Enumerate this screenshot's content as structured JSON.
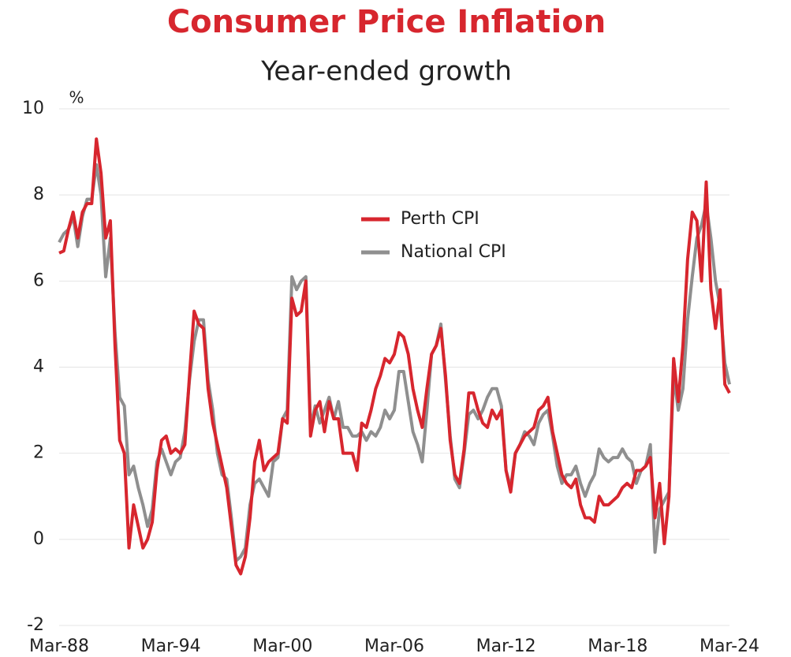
{
  "chart_data": {
    "type": "line",
    "title": "Consumer Price Inflation",
    "subtitle": "Year-ended growth",
    "y_label": "%",
    "categories": [
      "Mar-88",
      null,
      null,
      null,
      null,
      null,
      null,
      null,
      null,
      null,
      null,
      null,
      null,
      null,
      null,
      null,
      null,
      null,
      null,
      null,
      null,
      null,
      null,
      null,
      "Mar-94",
      null,
      null,
      null,
      null,
      null,
      null,
      null,
      null,
      null,
      null,
      null,
      null,
      null,
      null,
      null,
      null,
      null,
      null,
      null,
      null,
      null,
      null,
      null,
      "Mar-00",
      null,
      null,
      null,
      null,
      null,
      null,
      null,
      null,
      null,
      null,
      null,
      null,
      null,
      null,
      null,
      null,
      null,
      null,
      null,
      null,
      null,
      null,
      null,
      "Mar-06",
      null,
      null,
      null,
      null,
      null,
      null,
      null,
      null,
      null,
      null,
      null,
      null,
      null,
      null,
      null,
      null,
      null,
      null,
      null,
      null,
      null,
      null,
      null,
      "Mar-12",
      null,
      null,
      null,
      null,
      null,
      null,
      null,
      null,
      null,
      null,
      null,
      null,
      null,
      null,
      null,
      null,
      null,
      null,
      null,
      null,
      null,
      null,
      null,
      "Mar-18",
      null,
      null,
      null,
      null,
      null,
      null,
      null,
      null,
      null,
      null,
      null,
      null,
      null,
      null,
      null,
      null,
      null,
      null,
      null,
      null,
      null,
      null,
      null,
      "Mar-24"
    ],
    "series": [
      {
        "name": "Perth CPI",
        "color": "#d7262e",
        "values": [
          6.65,
          6.7,
          7.2,
          7.6,
          7.0,
          7.6,
          7.8,
          7.8,
          9.3,
          8.5,
          7.0,
          7.4,
          4.5,
          2.3,
          2.0,
          -0.2,
          0.8,
          0.3,
          -0.2,
          0.0,
          0.4,
          1.6,
          2.3,
          2.4,
          2.0,
          2.1,
          2.0,
          2.2,
          3.8,
          5.3,
          5.0,
          4.9,
          3.5,
          2.7,
          2.2,
          1.7,
          1.2,
          0.3,
          -0.6,
          -0.8,
          -0.4,
          0.5,
          1.8,
          2.3,
          1.6,
          1.8,
          1.9,
          2.0,
          2.8,
          2.7,
          5.6,
          5.2,
          5.3,
          6.0,
          2.4,
          3.0,
          3.2,
          2.5,
          3.2,
          2.8,
          2.8,
          2.0,
          2.0,
          2.0,
          1.6,
          2.7,
          2.6,
          3.0,
          3.5,
          3.8,
          4.2,
          4.1,
          4.3,
          4.8,
          4.7,
          4.3,
          3.5,
          3.0,
          2.6,
          3.5,
          4.3,
          4.5,
          4.9,
          3.8,
          2.3,
          1.5,
          1.3,
          2.1,
          3.4,
          3.4,
          3.0,
          2.7,
          2.6,
          3.0,
          2.8,
          3.0,
          1.6,
          1.1,
          2.0,
          2.2,
          2.4,
          2.5,
          2.6,
          3.0,
          3.1,
          3.3,
          2.5,
          2.0,
          1.5,
          1.3,
          1.2,
          1.4,
          0.8,
          0.5,
          0.5,
          0.4,
          1.0,
          0.8,
          0.8,
          0.9,
          1.0,
          1.2,
          1.3,
          1.2,
          1.6,
          1.6,
          1.7,
          1.9,
          0.5,
          1.3,
          -0.1,
          1.0,
          4.2,
          3.2,
          4.5,
          6.5,
          7.6,
          7.4,
          6.0,
          8.3,
          5.8,
          4.9,
          5.8,
          3.6,
          3.4
        ]
      },
      {
        "name": "National CPI",
        "color": "#8f8f8f",
        "values": [
          6.9,
          7.1,
          7.2,
          7.5,
          6.8,
          7.5,
          7.9,
          7.9,
          8.7,
          8.0,
          6.1,
          7.0,
          4.8,
          3.3,
          3.1,
          1.5,
          1.7,
          1.2,
          0.8,
          0.3,
          0.7,
          1.8,
          2.1,
          1.8,
          1.5,
          1.8,
          1.9,
          2.5,
          3.7,
          4.6,
          5.1,
          5.1,
          3.7,
          3.0,
          2.0,
          1.5,
          1.4,
          0.5,
          -0.5,
          -0.4,
          -0.2,
          0.8,
          1.3,
          1.4,
          1.2,
          1.0,
          1.8,
          1.9,
          2.8,
          3.0,
          6.1,
          5.8,
          6.0,
          6.1,
          2.6,
          3.1,
          2.7,
          3.0,
          3.3,
          2.8,
          3.2,
          2.6,
          2.6,
          2.4,
          2.4,
          2.5,
          2.3,
          2.5,
          2.4,
          2.6,
          3.0,
          2.8,
          3.0,
          3.9,
          3.9,
          3.2,
          2.5,
          2.2,
          1.8,
          3.0,
          4.3,
          4.5,
          5.0,
          3.7,
          2.4,
          1.4,
          1.2,
          2.0,
          2.9,
          3.0,
          2.8,
          3.0,
          3.3,
          3.5,
          3.5,
          3.1,
          1.6,
          1.2,
          2.0,
          2.2,
          2.5,
          2.4,
          2.2,
          2.7,
          2.9,
          3.0,
          2.4,
          1.7,
          1.3,
          1.5,
          1.5,
          1.7,
          1.3,
          1.0,
          1.3,
          1.5,
          2.1,
          1.9,
          1.8,
          1.9,
          1.9,
          2.1,
          1.9,
          1.8,
          1.3,
          1.6,
          1.7,
          2.2,
          -0.3,
          0.7,
          0.9,
          1.1,
          3.8,
          3.0,
          3.5,
          5.1,
          6.1,
          7.0,
          7.3,
          7.8,
          7.0,
          6.0,
          5.4,
          4.1,
          3.6
        ]
      }
    ],
    "ylim": [
      -2,
      10
    ],
    "yticks": [
      -2,
      0,
      2,
      4,
      6,
      8,
      10
    ],
    "grid": true
  }
}
